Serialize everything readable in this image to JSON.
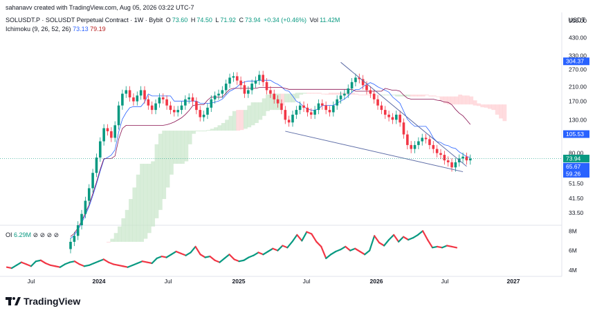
{
  "header": {
    "attribution": "sahanavv created with TradingView.com, Aug 05, 2026 03:22 UTC-7",
    "symbol": "SOLUSDT.P · SOLUSDT Perpetual Contract · 1W · Bybit",
    "ohlc": {
      "o_label": "O",
      "o": "73.60",
      "h_label": "H",
      "h": "74.50",
      "l_label": "L",
      "l": "71.92",
      "c_label": "C",
      "c": "73.94",
      "change": "+0.34 (+0.46%)",
      "vol_label": "Vol",
      "vol": "11.42M"
    },
    "indicator": "Ichimoku (9, 26, 52, 26)",
    "indicator_v1": "73.13",
    "indicator_v2": "79.19",
    "currency": "USDT"
  },
  "oi": {
    "label": "OI",
    "value": "6.29M",
    "icons": "⊘ ⊘ ⊘ ⊘"
  },
  "logo": {
    "text": "TradingView"
  },
  "colors": {
    "up": "#089981",
    "down": "#f23645",
    "tenkan": "#2962ff",
    "kijun": "#880e4f",
    "cloud_bull": "#c8e6c9",
    "cloud_bear": "#ffcdd2",
    "oi_up": "#089981",
    "oi_down": "#f23645"
  },
  "chart_data": [
    {
      "type": "candlestick",
      "title": "SOLUSDT.P · SOLUSDT Perpetual Contract · 1W · Bybit",
      "y_scale": "log",
      "price_ticks": [
        "550.00",
        "430.00",
        "330.00",
        "270.00",
        "210.00",
        "170.00",
        "130.00",
        "80.00",
        "65.67",
        "51.50",
        "41.50",
        "33.50"
      ],
      "price_tick_values": [
        550,
        430,
        330,
        270,
        210,
        170,
        130,
        80,
        65.67,
        51.5,
        41.5,
        33.5
      ],
      "x_ticks": [
        "Jul",
        "2024",
        "Jul",
        "2025",
        "Jul",
        "2026",
        "Jul",
        "2027"
      ],
      "x_tick_bold": [
        false,
        true,
        false,
        true,
        false,
        true,
        false,
        true
      ],
      "price_tags": [
        {
          "label": "304.37",
          "value": 304.37,
          "color": "#2962ff"
        },
        {
          "label": "105.53",
          "value": 105.53,
          "color": "#2962ff"
        },
        {
          "label": "73.94",
          "value": 73.94,
          "color": "#089981"
        },
        {
          "label": "65.67",
          "value": 65.67,
          "color": "#2962ff"
        },
        {
          "label": "59.26",
          "value": 59.26,
          "color": "#2962ff"
        }
      ],
      "close_series": [
        22,
        24,
        28,
        33,
        40,
        48,
        60,
        75,
        95,
        115,
        110,
        100,
        120,
        160,
        190,
        200,
        180,
        170,
        185,
        200,
        175,
        160,
        150,
        165,
        180,
        175,
        160,
        150,
        145,
        150,
        160,
        175,
        180,
        170,
        150,
        135,
        140,
        155,
        175,
        185,
        190,
        200,
        220,
        240,
        245,
        230,
        215,
        190,
        200,
        220,
        230,
        250,
        225,
        200,
        190,
        175,
        165,
        150,
        130,
        125,
        140,
        150,
        160,
        155,
        145,
        140,
        150,
        165,
        160,
        150,
        145,
        160,
        175,
        185,
        190,
        205,
        225,
        240,
        235,
        215,
        200,
        190,
        175,
        160,
        150,
        140,
        135,
        130,
        140,
        125,
        105,
        90,
        85,
        90,
        95,
        100,
        98,
        90,
        85,
        80,
        78,
        72,
        70,
        65,
        70,
        74,
        76,
        72,
        73.94
      ],
      "wedge_upper": [
        {
          "i": 73,
          "p": 300
        },
        {
          "i": 107,
          "p": 66
        }
      ],
      "wedge_lower": [
        {
          "i": 58,
          "p": 110
        },
        {
          "i": 106,
          "p": 61
        }
      ]
    },
    {
      "type": "line",
      "title": "OI",
      "y_ticks": [
        "8M",
        "6M",
        "4M"
      ],
      "y_tick_values": [
        8,
        6,
        4
      ],
      "values": [
        4.3,
        4.2,
        4.5,
        4.8,
        4.6,
        4.4,
        4.9,
        5.0,
        4.7,
        4.5,
        4.4,
        4.3,
        4.6,
        4.8,
        4.9,
        4.6,
        4.4,
        4.5,
        4.7,
        4.9,
        5.1,
        4.8,
        4.6,
        4.5,
        4.4,
        4.3,
        4.5,
        4.7,
        4.9,
        4.8,
        4.7,
        5.2,
        5.4,
        5.3,
        5.6,
        5.9,
        5.7,
        5.5,
        5.8,
        6.4,
        5.6,
        5.3,
        5.4,
        5.0,
        4.8,
        5.2,
        5.6,
        5.1,
        4.9,
        5.0,
        5.3,
        5.5,
        5.8,
        5.6,
        5.9,
        6.2,
        6.0,
        6.5,
        6.3,
        6.9,
        7.6,
        7.0,
        7.9,
        7.7,
        6.9,
        6.4,
        5.2,
        5.6,
        5.9,
        6.1,
        6.4,
        6.0,
        6.2,
        5.9,
        5.6,
        6.0,
        7.5,
        6.8,
        6.5,
        7.1,
        7.6,
        6.9,
        7.4,
        7.1,
        7.3,
        7.6,
        8.0,
        7.1,
        6.3,
        6.4,
        6.3,
        6.5,
        6.4,
        6.29
      ]
    }
  ]
}
